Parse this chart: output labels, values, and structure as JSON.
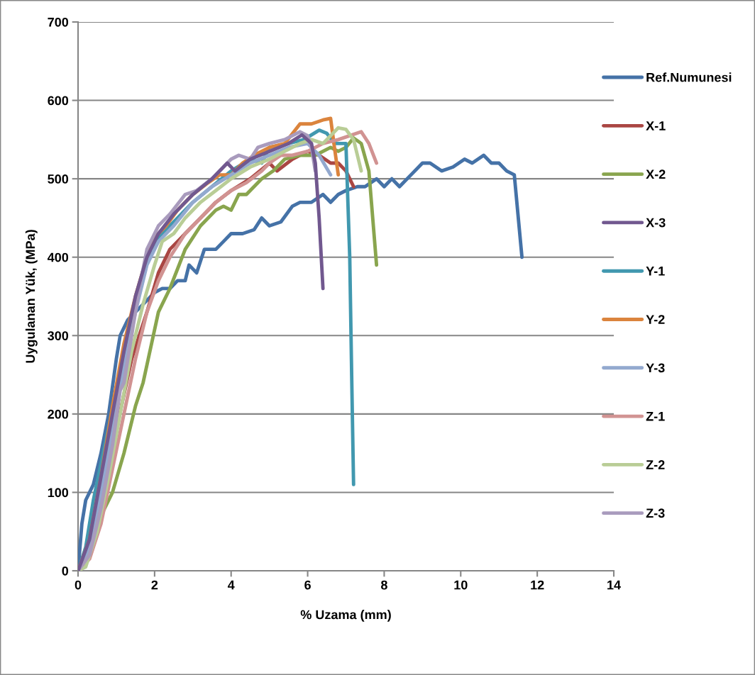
{
  "chart_data": {
    "type": "line",
    "xlabel": "% Uzama (mm)",
    "ylabel": "Uygulanan Yük, (MPa)",
    "xlim": [
      0,
      14
    ],
    "ylim": [
      0,
      700
    ],
    "xticks": [
      0,
      2,
      4,
      6,
      8,
      10,
      12,
      14
    ],
    "yticks": [
      0,
      100,
      200,
      300,
      400,
      500,
      600,
      700
    ],
    "grid": "y",
    "legend": "right",
    "marker": "none",
    "line_style": "solid",
    "series": [
      {
        "name": "Ref.Numunesi",
        "color": "#4572a7",
        "x": [
          0,
          0.1,
          0.2,
          0.4,
          0.6,
          0.8,
          1.0,
          1.1,
          1.3,
          1.6,
          2.0,
          2.2,
          2.4,
          2.6,
          2.8,
          2.9,
          3.1,
          3.3,
          3.6,
          3.8,
          4.0,
          4.3,
          4.6,
          4.8,
          5.0,
          5.3,
          5.6,
          5.8,
          6.1,
          6.4,
          6.6,
          6.8,
          7.0,
          7.3,
          7.5,
          7.8,
          8.0,
          8.2,
          8.4,
          8.7,
          9.0,
          9.2,
          9.5,
          9.8,
          10.1,
          10.3,
          10.6,
          10.8,
          11.0,
          11.2,
          11.4,
          11.6
        ],
        "values": [
          0,
          60,
          90,
          110,
          150,
          200,
          270,
          300,
          320,
          335,
          355,
          360,
          360,
          370,
          370,
          390,
          380,
          410,
          410,
          420,
          430,
          430,
          435,
          450,
          440,
          445,
          465,
          470,
          470,
          480,
          470,
          480,
          485,
          490,
          490,
          500,
          490,
          500,
          490,
          505,
          520,
          520,
          510,
          515,
          525,
          520,
          530,
          520,
          520,
          510,
          505,
          400
        ]
      },
      {
        "name": "X-1",
        "color": "#aa4643",
        "x": [
          0,
          0.3,
          0.6,
          1.0,
          1.4,
          1.8,
          2.1,
          2.4,
          2.8,
          3.2,
          3.6,
          4.0,
          4.5,
          5.0,
          5.2,
          5.6,
          6.0,
          6.3,
          6.6,
          6.8,
          7.0,
          7.2
        ],
        "values": [
          0,
          20,
          80,
          180,
          270,
          330,
          380,
          410,
          430,
          450,
          470,
          485,
          500,
          520,
          510,
          525,
          535,
          530,
          520,
          520,
          510,
          490
        ]
      },
      {
        "name": "X-2",
        "color": "#89a54e",
        "x": [
          0,
          0.3,
          0.5,
          0.7,
          0.9,
          1.2,
          1.5,
          1.7,
          2.1,
          2.4,
          2.8,
          3.2,
          3.6,
          3.8,
          4.0,
          4.2,
          4.4,
          4.8,
          5.1,
          5.4,
          5.8,
          6.2,
          6.6,
          6.8,
          7.0,
          7.2,
          7.4,
          7.6,
          7.8
        ],
        "values": [
          0,
          20,
          60,
          80,
          100,
          150,
          210,
          240,
          330,
          360,
          410,
          440,
          460,
          465,
          460,
          480,
          480,
          500,
          510,
          525,
          530,
          530,
          540,
          535,
          540,
          552,
          545,
          510,
          390
        ]
      },
      {
        "name": "X-3",
        "color": "#71588f",
        "x": [
          0,
          0.3,
          0.6,
          0.9,
          1.2,
          1.5,
          1.8,
          2.1,
          2.5,
          3.0,
          3.5,
          3.9,
          4.1,
          4.5,
          5.0,
          5.5,
          5.85,
          6.1,
          6.2,
          6.3,
          6.4
        ],
        "values": [
          0,
          40,
          120,
          200,
          280,
          350,
          400,
          430,
          455,
          480,
          500,
          520,
          510,
          525,
          535,
          545,
          556,
          545,
          520,
          450,
          360
        ]
      },
      {
        "name": "Y-1",
        "color": "#4198af",
        "x": [
          0,
          0.2,
          0.4,
          0.7,
          1.0,
          1.3,
          1.6,
          1.9,
          2.2,
          2.6,
          3.0,
          3.5,
          4.0,
          4.5,
          4.8,
          5.0,
          5.5,
          5.9,
          6.3,
          6.5,
          6.7,
          7.0,
          7.1,
          7.15,
          7.2
        ],
        "values": [
          0,
          30,
          90,
          160,
          230,
          300,
          360,
          410,
          430,
          450,
          470,
          490,
          510,
          525,
          520,
          540,
          545,
          550,
          562,
          558,
          545,
          545,
          400,
          250,
          110
        ]
      },
      {
        "name": "Y-2",
        "color": "#db843d",
        "x": [
          0,
          0.3,
          0.6,
          0.9,
          1.2,
          1.5,
          1.8,
          2.0,
          2.3,
          2.6,
          3.0,
          3.4,
          3.7,
          4.0,
          4.3,
          4.6,
          5.0,
          5.4,
          5.8,
          6.1,
          6.4,
          6.6,
          6.7,
          6.8
        ],
        "values": [
          0,
          40,
          120,
          210,
          290,
          350,
          400,
          425,
          440,
          460,
          480,
          495,
          505,
          505,
          520,
          530,
          540,
          545,
          570,
          570,
          575,
          577,
          540,
          505
        ]
      },
      {
        "name": "Y-3",
        "color": "#93a9cf",
        "x": [
          0,
          0.3,
          0.6,
          0.9,
          1.2,
          1.5,
          1.8,
          2.1,
          2.5,
          3.0,
          3.5,
          4.0,
          4.5,
          5.0,
          5.5,
          6.0,
          6.3,
          6.6
        ],
        "values": [
          0,
          30,
          100,
          180,
          260,
          330,
          390,
          420,
          440,
          470,
          490,
          505,
          520,
          530,
          540,
          545,
          530,
          505
        ]
      },
      {
        "name": "Z-1",
        "color": "#d19392",
        "x": [
          0,
          0.3,
          0.6,
          0.9,
          1.2,
          1.5,
          1.8,
          2.1,
          2.4,
          2.8,
          3.2,
          3.6,
          4.0,
          4.4,
          4.8,
          5.0,
          5.3,
          5.6,
          6.0,
          6.4,
          6.8,
          7.1,
          7.4,
          7.6,
          7.8
        ],
        "values": [
          0,
          15,
          60,
          130,
          200,
          270,
          330,
          370,
          400,
          430,
          450,
          470,
          485,
          495,
          510,
          520,
          530,
          530,
          535,
          545,
          550,
          555,
          560,
          545,
          520
        ]
      },
      {
        "name": "Z-2",
        "color": "#b9cd96",
        "x": [
          0,
          0.2,
          0.5,
          0.8,
          1.1,
          1.4,
          1.7,
          2.0,
          2.2,
          2.5,
          2.8,
          3.2,
          3.6,
          4.0,
          4.5,
          5.0,
          5.4,
          5.8,
          6.1,
          6.4,
          6.6,
          6.8,
          7.0,
          7.2,
          7.3,
          7.4
        ],
        "values": [
          0,
          5,
          50,
          120,
          200,
          280,
          340,
          390,
          420,
          430,
          450,
          470,
          485,
          500,
          515,
          525,
          535,
          545,
          550,
          545,
          555,
          565,
          563,
          550,
          530,
          510
        ]
      },
      {
        "name": "Z-3",
        "color": "#a99bbd",
        "x": [
          0,
          0.3,
          0.6,
          0.9,
          1.1,
          1.2,
          1.4,
          1.6,
          1.8,
          2.1,
          2.4,
          2.8,
          3.1,
          3.5,
          4.0,
          4.2,
          4.5,
          4.7,
          5.0,
          5.4,
          5.8,
          6.0,
          6.1,
          6.2
        ],
        "values": [
          0,
          20,
          80,
          160,
          230,
          240,
          300,
          360,
          410,
          440,
          455,
          480,
          485,
          500,
          525,
          530,
          525,
          540,
          545,
          550,
          560,
          555,
          540,
          510
        ]
      }
    ]
  }
}
